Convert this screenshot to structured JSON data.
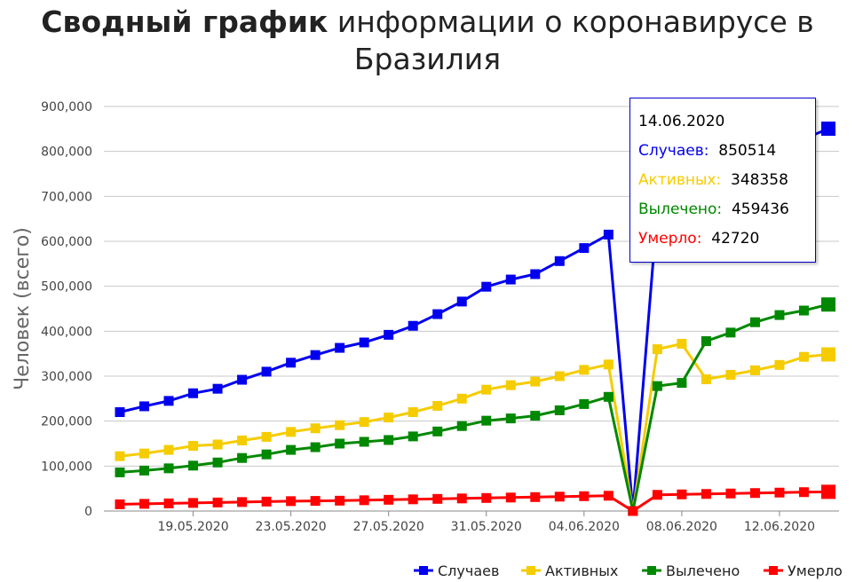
{
  "title": {
    "bold": "Сводный график",
    "rest": "информации о коронавирусе в Бразилия"
  },
  "chart_data": {
    "type": "line",
    "title": "Сводный график информации о коронавирусе в Бразилия",
    "ylabel": "Человек (всего)",
    "xlabel": "",
    "ylim": [
      0,
      900000
    ],
    "y_ticks": [
      "900,000",
      "800,000",
      "700,000",
      "600,000",
      "500,000",
      "400,000",
      "300,000",
      "200,000",
      "100,000",
      "0"
    ],
    "x_ticks": [
      "19.05.2020",
      "23.05.2020",
      "27.05.2020",
      "31.05.2020",
      "04.06.2020",
      "08.06.2020",
      "12.06.2020"
    ],
    "x": [
      "16.05.2020",
      "17.05.2020",
      "18.05.2020",
      "19.05.2020",
      "20.05.2020",
      "21.05.2020",
      "22.05.2020",
      "23.05.2020",
      "24.05.2020",
      "25.05.2020",
      "26.05.2020",
      "27.05.2020",
      "28.05.2020",
      "29.05.2020",
      "30.05.2020",
      "31.05.2020",
      "01.06.2020",
      "02.06.2020",
      "03.06.2020",
      "04.06.2020",
      "05.06.2020",
      "06.06.2020",
      "07.06.2020",
      "08.06.2020",
      "09.06.2020",
      "10.06.2020",
      "11.06.2020",
      "12.06.2020",
      "13.06.2020",
      "14.06.2020"
    ],
    "series": [
      {
        "name": "Случаев",
        "color": "#0000ee",
        "values": [
          220000,
          233000,
          245000,
          262000,
          272000,
          292000,
          310000,
          330000,
          347000,
          363000,
          375000,
          392000,
          412000,
          438000,
          466000,
          499000,
          515000,
          527000,
          556000,
          585000,
          615000,
          0,
          672000,
          692000,
          710000,
          740000,
          773000,
          805000,
          828000,
          850514
        ]
      },
      {
        "name": "Активных",
        "color": "#f5cc00",
        "values": [
          122000,
          128000,
          136000,
          145000,
          148000,
          157000,
          165000,
          176000,
          184000,
          191000,
          198000,
          208000,
          220000,
          234000,
          250000,
          270000,
          280000,
          288000,
          300000,
          314000,
          326000,
          0,
          360000,
          372000,
          293000,
          303000,
          313000,
          325000,
          343000,
          348358
        ]
      },
      {
        "name": "Вылечено",
        "color": "#008800",
        "values": [
          86000,
          90000,
          95000,
          101000,
          108000,
          118000,
          126000,
          136000,
          142000,
          150000,
          154000,
          158000,
          166000,
          177000,
          189000,
          201000,
          206000,
          212000,
          224000,
          238000,
          254000,
          0,
          278000,
          285000,
          378000,
          397000,
          420000,
          436000,
          446000,
          459436
        ]
      },
      {
        "name": "Умерло",
        "color": "#ff0000",
        "values": [
          15000,
          16000,
          17000,
          18000,
          19000,
          20000,
          21000,
          22000,
          22500,
          23000,
          24000,
          25000,
          26000,
          27000,
          28000,
          29000,
          30000,
          31000,
          32000,
          33000,
          34000,
          0,
          36000,
          37000,
          38000,
          39000,
          40000,
          41000,
          42000,
          42720
        ]
      }
    ],
    "legend": "bottom-right",
    "grid": true
  },
  "tooltip": {
    "date": "14.06.2020",
    "rows": [
      {
        "label": "Случаев:",
        "value": "850514",
        "color": "#0000ee"
      },
      {
        "label": "Активных:",
        "value": "348358",
        "color": "#f5cc00"
      },
      {
        "label": "Вылечено:",
        "value": "459436",
        "color": "#008800"
      },
      {
        "label": "Умерло:",
        "value": "42720",
        "color": "#ff0000"
      }
    ]
  }
}
